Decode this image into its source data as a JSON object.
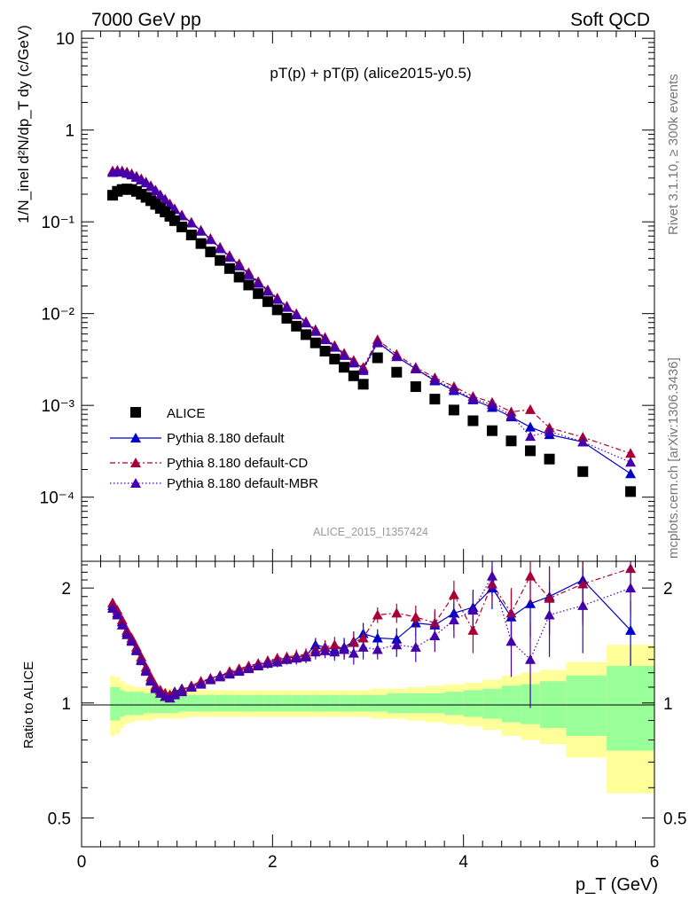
{
  "header": {
    "left": "7000 GeV pp",
    "right": "Soft QCD",
    "plot_title": "pT(p) + pT(p̅) (alice2015-y0.5)",
    "side_rivet": "Rivet 3.1.10, ≥ 300k events",
    "side_mcplots": "mcplots.cern.ch [arXiv:1306.3436]",
    "analysis_id": "ALICE_2015_I1357424"
  },
  "axes": {
    "ylabel_top": "1/N_inel d²N/dp_T dy (c/GeV)",
    "ylabel_bottom": "Ratio to ALICE",
    "xlabel": "p_T (GeV)",
    "x_ticks": [
      "0",
      "2",
      "4",
      "6"
    ],
    "y_ticks_top": [
      "10",
      "1",
      "10⁻¹",
      "10⁻²",
      "10⁻³",
      "10⁻⁴"
    ],
    "y_ticks_bottom": [
      "2",
      "1",
      "0.5"
    ]
  },
  "legend": [
    {
      "label": "ALICE"
    },
    {
      "label": "Pythia 8.180 default"
    },
    {
      "label": "Pythia 8.180 default-CD"
    },
    {
      "label": "Pythia 8.180 default-MBR"
    }
  ],
  "colors": {
    "data": "#000000",
    "default": "#0000cc",
    "cd": "#aa0033",
    "mbr": "#4400aa",
    "band_inner": "#99ff99",
    "band_outer": "#ffff99"
  },
  "chart_data": {
    "type": "scatter",
    "title": "pT(p) + pT(p̅) (alice2015-y0.5)",
    "xlabel": "p_T (GeV)",
    "ylabel": "1/N_inel d²N/dp_T dy (c/GeV)",
    "xlim": [
      0,
      6.0
    ],
    "ylim": [
      2e-05,
      12
    ],
    "yscale": "log",
    "ratio_ylim": [
      0.42,
      2.35
    ],
    "ratio_yscale": "log",
    "x": [
      0.325,
      0.375,
      0.425,
      0.475,
      0.525,
      0.575,
      0.625,
      0.675,
      0.725,
      0.775,
      0.825,
      0.875,
      0.925,
      0.975,
      1.05,
      1.15,
      1.25,
      1.35,
      1.45,
      1.55,
      1.65,
      1.75,
      1.85,
      1.95,
      2.05,
      2.15,
      2.25,
      2.35,
      2.45,
      2.55,
      2.65,
      2.75,
      2.85,
      2.95,
      3.1,
      3.3,
      3.5,
      3.7,
      3.9,
      4.1,
      4.3,
      4.5,
      4.7,
      4.9,
      5.25,
      5.75
    ],
    "series": [
      {
        "name": "ALICE",
        "marker": "square",
        "values": [
          0.195,
          0.215,
          0.225,
          0.228,
          0.225,
          0.215,
          0.2,
          0.185,
          0.17,
          0.155,
          0.14,
          0.128,
          0.115,
          0.103,
          0.088,
          0.072,
          0.058,
          0.047,
          0.038,
          0.031,
          0.025,
          0.0205,
          0.0165,
          0.0135,
          0.011,
          0.0089,
          0.0073,
          0.0059,
          0.0048,
          0.0039,
          0.0032,
          0.0026,
          0.0021,
          0.0017,
          0.0033,
          0.0023,
          0.0016,
          0.00117,
          0.00089,
          0.00068,
          0.00053,
          0.00041,
          0.00032,
          0.00026,
          0.00019,
          0.000115
        ],
        "ratio_band_inner": [
          0.1,
          0.1,
          0.08,
          0.07,
          0.07,
          0.07,
          0.07,
          0.06,
          0.06,
          0.06,
          0.06,
          0.06,
          0.06,
          0.06,
          0.05,
          0.05,
          0.05,
          0.05,
          0.05,
          0.05,
          0.05,
          0.05,
          0.05,
          0.05,
          0.05,
          0.05,
          0.05,
          0.05,
          0.05,
          0.05,
          0.05,
          0.05,
          0.05,
          0.05,
          0.05,
          0.06,
          0.06,
          0.06,
          0.07,
          0.08,
          0.09,
          0.11,
          0.12,
          0.14,
          0.18,
          0.25
        ],
        "ratio_band_outer": [
          0.18,
          0.17,
          0.14,
          0.12,
          0.11,
          0.1,
          0.1,
          0.1,
          0.1,
          0.09,
          0.09,
          0.09,
          0.09,
          0.09,
          0.09,
          0.08,
          0.08,
          0.08,
          0.08,
          0.08,
          0.08,
          0.08,
          0.08,
          0.08,
          0.08,
          0.08,
          0.08,
          0.08,
          0.08,
          0.08,
          0.08,
          0.08,
          0.08,
          0.08,
          0.09,
          0.09,
          0.1,
          0.11,
          0.12,
          0.13,
          0.15,
          0.18,
          0.2,
          0.22,
          0.28,
          0.42
        ]
      },
      {
        "name": "Pythia 8.180 default",
        "marker": "triangle",
        "values": [
          0.355,
          0.36,
          0.355,
          0.345,
          0.33,
          0.31,
          0.29,
          0.27,
          0.245,
          0.22,
          0.195,
          0.175,
          0.155,
          0.138,
          0.118,
          0.098,
          0.08,
          0.065,
          0.052,
          0.042,
          0.034,
          0.027,
          0.0218,
          0.0178,
          0.0145,
          0.0118,
          0.0098,
          0.008,
          0.0065,
          0.0053,
          0.0044,
          0.0036,
          0.003,
          0.0025,
          0.0049,
          0.0034,
          0.0025,
          0.00185,
          0.00145,
          0.00115,
          0.00095,
          0.00075,
          0.00058,
          0.00048,
          0.0004,
          0.00018
        ],
        "ratio": [
          1.8,
          1.72,
          1.63,
          1.53,
          1.46,
          1.38,
          1.3,
          1.22,
          1.15,
          1.1,
          1.08,
          1.06,
          1.05,
          1.07,
          1.09,
          1.1,
          1.13,
          1.16,
          1.18,
          1.2,
          1.22,
          1.24,
          1.26,
          1.28,
          1.3,
          1.31,
          1.32,
          1.33,
          1.42,
          1.4,
          1.38,
          1.4,
          1.45,
          1.52,
          1.48,
          1.47,
          1.62,
          1.6,
          1.72,
          1.78,
          2.0,
          1.68,
          1.82,
          1.9,
          2.1,
          1.55
        ],
        "ratio_err": [
          0.02,
          0.02,
          0.02,
          0.02,
          0.02,
          0.02,
          0.02,
          0.02,
          0.02,
          0.02,
          0.02,
          0.02,
          0.02,
          0.02,
          0.02,
          0.02,
          0.02,
          0.02,
          0.03,
          0.03,
          0.03,
          0.03,
          0.03,
          0.04,
          0.04,
          0.04,
          0.05,
          0.05,
          0.06,
          0.06,
          0.07,
          0.08,
          0.09,
          0.1,
          0.08,
          0.1,
          0.12,
          0.14,
          0.17,
          0.2,
          0.24,
          0.28,
          0.33,
          0.38,
          0.45,
          0.3
        ]
      },
      {
        "name": "Pythia 8.180 default-CD",
        "marker": "triangle",
        "values": [
          0.36,
          0.365,
          0.36,
          0.35,
          0.335,
          0.315,
          0.295,
          0.272,
          0.248,
          0.222,
          0.198,
          0.177,
          0.157,
          0.139,
          0.119,
          0.099,
          0.081,
          0.066,
          0.053,
          0.043,
          0.035,
          0.028,
          0.0224,
          0.0182,
          0.0148,
          0.0121,
          0.01,
          0.0082,
          0.0067,
          0.0055,
          0.0045,
          0.0037,
          0.0031,
          0.0026,
          0.0052,
          0.0036,
          0.0026,
          0.002,
          0.0016,
          0.00125,
          0.00108,
          0.00085,
          0.0009,
          0.00057,
          0.00045,
          0.0003
        ],
        "ratio": [
          1.83,
          1.75,
          1.65,
          1.55,
          1.48,
          1.4,
          1.32,
          1.24,
          1.17,
          1.11,
          1.08,
          1.06,
          1.05,
          1.06,
          1.08,
          1.11,
          1.14,
          1.16,
          1.18,
          1.21,
          1.23,
          1.25,
          1.27,
          1.29,
          1.31,
          1.32,
          1.33,
          1.34,
          1.38,
          1.4,
          1.42,
          1.38,
          1.44,
          1.48,
          1.7,
          1.72,
          1.68,
          1.62,
          1.92,
          1.55,
          2.05,
          1.72,
          2.15,
          1.88,
          2.05,
          2.25
        ],
        "ratio_err": [
          0.02,
          0.02,
          0.02,
          0.02,
          0.02,
          0.02,
          0.02,
          0.02,
          0.02,
          0.02,
          0.02,
          0.02,
          0.02,
          0.02,
          0.02,
          0.02,
          0.02,
          0.02,
          0.03,
          0.03,
          0.03,
          0.03,
          0.03,
          0.04,
          0.04,
          0.04,
          0.05,
          0.05,
          0.06,
          0.06,
          0.07,
          0.08,
          0.09,
          0.1,
          0.08,
          0.1,
          0.12,
          0.14,
          0.17,
          0.2,
          0.24,
          0.28,
          0.33,
          0.38,
          0.45,
          0.3
        ]
      },
      {
        "name": "Pythia 8.180 default-MBR",
        "marker": "triangle",
        "values": [
          0.345,
          0.352,
          0.348,
          0.338,
          0.325,
          0.305,
          0.286,
          0.266,
          0.242,
          0.218,
          0.193,
          0.173,
          0.153,
          0.136,
          0.116,
          0.097,
          0.079,
          0.064,
          0.051,
          0.041,
          0.033,
          0.0265,
          0.0214,
          0.0175,
          0.0143,
          0.0117,
          0.0097,
          0.0079,
          0.0064,
          0.0052,
          0.0043,
          0.0035,
          0.0029,
          0.0024,
          0.0048,
          0.0034,
          0.0025,
          0.0019,
          0.0015,
          0.00118,
          0.00102,
          0.00078,
          0.00046,
          0.00052,
          0.0004,
          0.00024
        ],
        "ratio": [
          1.77,
          1.7,
          1.6,
          1.51,
          1.45,
          1.37,
          1.29,
          1.21,
          1.14,
          1.09,
          1.06,
          1.04,
          1.03,
          1.05,
          1.07,
          1.1,
          1.12,
          1.15,
          1.17,
          1.19,
          1.21,
          1.23,
          1.25,
          1.27,
          1.28,
          1.3,
          1.31,
          1.32,
          1.36,
          1.37,
          1.36,
          1.38,
          1.35,
          1.4,
          1.38,
          1.42,
          1.4,
          1.5,
          1.65,
          1.75,
          2.15,
          1.45,
          1.3,
          1.7,
          1.8,
          2.0
        ],
        "ratio_err": [
          0.02,
          0.02,
          0.02,
          0.02,
          0.02,
          0.02,
          0.02,
          0.02,
          0.02,
          0.02,
          0.02,
          0.02,
          0.02,
          0.02,
          0.02,
          0.02,
          0.02,
          0.02,
          0.03,
          0.03,
          0.03,
          0.03,
          0.03,
          0.04,
          0.04,
          0.04,
          0.05,
          0.05,
          0.06,
          0.06,
          0.07,
          0.08,
          0.09,
          0.1,
          0.08,
          0.1,
          0.12,
          0.14,
          0.17,
          0.2,
          0.24,
          0.28,
          0.33,
          0.38,
          0.45,
          0.3
        ]
      }
    ]
  }
}
